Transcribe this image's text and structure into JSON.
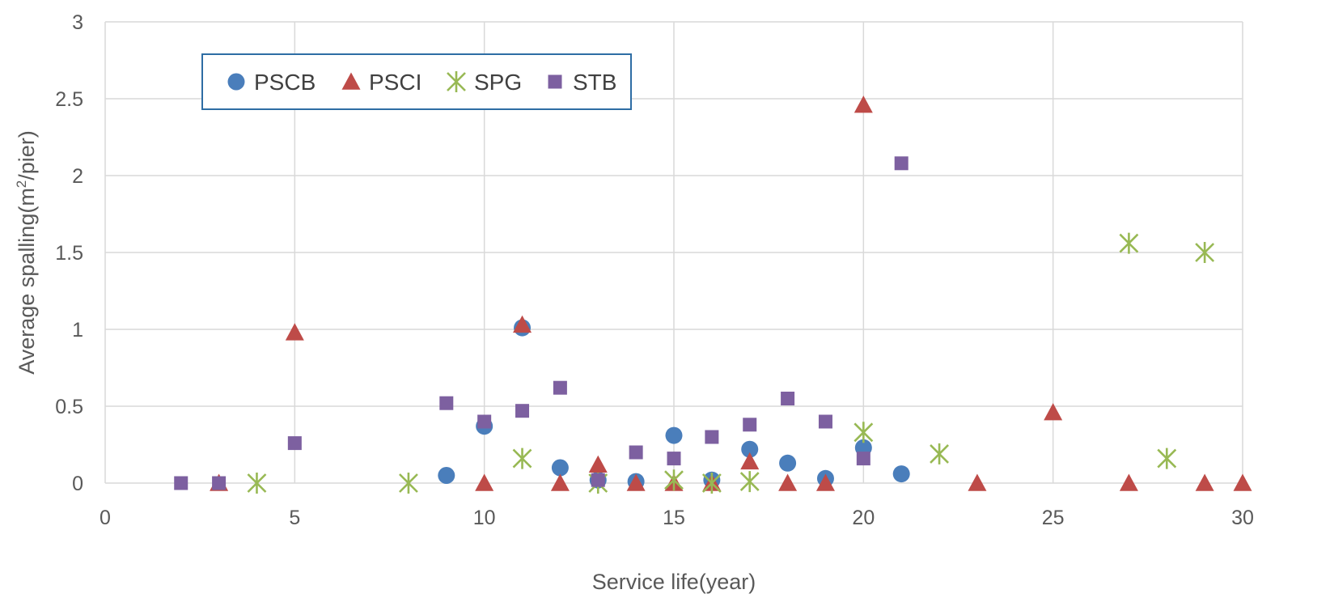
{
  "chart_data": {
    "type": "scatter",
    "title": "",
    "xlabel": "Service life(year)",
    "ylabel_prefix": "Average spalling(m",
    "ylabel_sup": "2",
    "ylabel_suffix": "/pier)",
    "xlim": [
      0,
      30
    ],
    "ylim": [
      0,
      3
    ],
    "xticks": [
      "0",
      "5",
      "10",
      "15",
      "20",
      "25",
      "30"
    ],
    "yticks": [
      "0",
      "0.5",
      "1",
      "1.5",
      "2",
      "2.5",
      "3"
    ],
    "grid": true,
    "legend_position": "top-left",
    "series": [
      {
        "name": "PSCB",
        "marker": "circle",
        "color": "#4a7ebb",
        "x": [
          9,
          10,
          11,
          12,
          13,
          14,
          15,
          16,
          17,
          18,
          19,
          20,
          21
        ],
        "y": [
          0.05,
          0.37,
          1.01,
          0.1,
          0.02,
          0.01,
          0.31,
          0.02,
          0.22,
          0.13,
          0.03,
          0.23,
          0.06
        ]
      },
      {
        "name": "PSCI",
        "marker": "triangle",
        "color": "#be4b48",
        "x": [
          3,
          5,
          10,
          11,
          12,
          13,
          14,
          15,
          16,
          17,
          18,
          19,
          20,
          23,
          25,
          27,
          29,
          30
        ],
        "y": [
          0,
          0.98,
          0,
          1.03,
          0,
          0.12,
          0,
          0,
          0,
          0.14,
          0,
          0,
          2.46,
          0,
          0.46,
          0,
          0,
          0
        ]
      },
      {
        "name": "SPG",
        "marker": "star",
        "color": "#98b954",
        "x": [
          4,
          8,
          11,
          13,
          15,
          16,
          17,
          20,
          22,
          27,
          28,
          29
        ],
        "y": [
          0,
          0,
          0.16,
          0,
          0.02,
          0,
          0.01,
          0.33,
          0.19,
          1.56,
          0.16,
          1.5
        ]
      },
      {
        "name": "STB",
        "marker": "square",
        "color": "#7d60a0",
        "x": [
          2,
          3,
          5,
          9,
          10,
          11,
          12,
          13,
          14,
          15,
          16,
          17,
          18,
          19,
          20,
          21
        ],
        "y": [
          0,
          0,
          0.26,
          0.52,
          0.4,
          0.47,
          0.62,
          0.02,
          0.2,
          0.16,
          0.3,
          0.38,
          0.55,
          0.4,
          0.16,
          2.08
        ]
      }
    ]
  }
}
